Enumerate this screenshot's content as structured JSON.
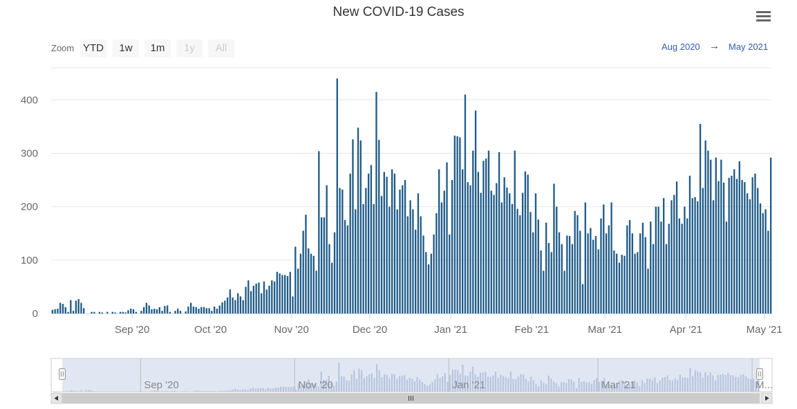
{
  "title": "New COVID-19 Cases",
  "menu_icon": "hamburger-menu-icon",
  "zoom": {
    "label": "Zoom",
    "buttons": [
      {
        "label": "YTD",
        "enabled": true
      },
      {
        "label": "1w",
        "enabled": true
      },
      {
        "label": "1m",
        "enabled": true
      },
      {
        "label": "1y",
        "enabled": false
      },
      {
        "label": "All",
        "enabled": false
      }
    ]
  },
  "range": {
    "from": "Aug 2020",
    "arrow": "→",
    "to": "May 2021"
  },
  "colors": {
    "bar": "#1f5b87",
    "navigator_fill": "#c9d4e8",
    "navigator_series": "#9fb3d8",
    "grid": "#e6e6e6"
  },
  "chart_data": {
    "type": "bar",
    "title": "New COVID-19 Cases",
    "xlabel": "",
    "ylabel": "",
    "ylim": [
      0,
      460
    ],
    "yticks": [
      0,
      100,
      200,
      300,
      400
    ],
    "start_date": "2020-08-01",
    "xticks": [
      {
        "label": "Sep '20",
        "day": 31
      },
      {
        "label": "Oct '20",
        "day": 61
      },
      {
        "label": "Nov '20",
        "day": 92
      },
      {
        "label": "Dec '20",
        "day": 122
      },
      {
        "label": "Jan '21",
        "day": 153
      },
      {
        "label": "Feb '21",
        "day": 184
      },
      {
        "label": "Mar '21",
        "day": 212
      },
      {
        "label": "Apr '21",
        "day": 243
      },
      {
        "label": "May '21",
        "day": 273
      }
    ],
    "navigator_labels": [
      {
        "label": "Sep '20",
        "day": 31
      },
      {
        "label": "Nov '20",
        "day": 92
      },
      {
        "label": "Jan '21",
        "day": 153
      },
      {
        "label": "Mar '21",
        "day": 212
      },
      {
        "label": "M...",
        "day": 273
      }
    ],
    "values": [
      7,
      8,
      9,
      20,
      18,
      12,
      3,
      25,
      5,
      24,
      27,
      20,
      10,
      0,
      0,
      3,
      3,
      0,
      3,
      2,
      0,
      3,
      0,
      3,
      2,
      0,
      3,
      3,
      2,
      6,
      9,
      8,
      3,
      0,
      5,
      12,
      20,
      15,
      8,
      9,
      8,
      12,
      5,
      14,
      15,
      3,
      0,
      5,
      9,
      5,
      0,
      4,
      13,
      20,
      13,
      12,
      9,
      12,
      12,
      10,
      10,
      5,
      13,
      9,
      15,
      21,
      24,
      30,
      45,
      30,
      25,
      38,
      32,
      25,
      50,
      62,
      42,
      52,
      56,
      58,
      38,
      60,
      45,
      52,
      62,
      60,
      78,
      75,
      72,
      72,
      70,
      78,
      32,
      125,
      84,
      112,
      155,
      185,
      122,
      112,
      108,
      80,
      304,
      180,
      180,
      240,
      130,
      95,
      152,
      440,
      235,
      232,
      175,
      165,
      262,
      326,
      195,
      348,
      324,
      205,
      235,
      262,
      278,
      205,
      415,
      325,
      220,
      265,
      256,
      200,
      270,
      262,
      195,
      232,
      240,
      250,
      182,
      212,
      195,
      157,
      225,
      182,
      146,
      115,
      92,
      112,
      148,
      188,
      270,
      208,
      230,
      283,
      148,
      250,
      333,
      332,
      330,
      270,
      410,
      246,
      240,
      305,
      380,
      265,
      226,
      286,
      290,
      305,
      230,
      222,
      244,
      302,
      208,
      255,
      236,
      225,
      205,
      305,
      196,
      184,
      226,
      266,
      260,
      190,
      152,
      225,
      176,
      118,
      80,
      170,
      132,
      115,
      243,
      200,
      152,
      130,
      80,
      146,
      145,
      130,
      192,
      184,
      155,
      55,
      208,
      150,
      160,
      138,
      145,
      120,
      178,
      204,
      150,
      165,
      208,
      118,
      112,
      95,
      110,
      108,
      165,
      175,
      150,
      112,
      115,
      150,
      170,
      143,
      84,
      172,
      130,
      200,
      200,
      172,
      216,
      130,
      168,
      212,
      222,
      247,
      178,
      168,
      200,
      178,
      258,
      216,
      218,
      210,
      355,
      235,
      324,
      305,
      288,
      212,
      292,
      248,
      288,
      245,
      172,
      254,
      258,
      270,
      252,
      285,
      250,
      246,
      225,
      214,
      255,
      262,
      235,
      206,
      188,
      195,
      155,
      292
    ]
  }
}
